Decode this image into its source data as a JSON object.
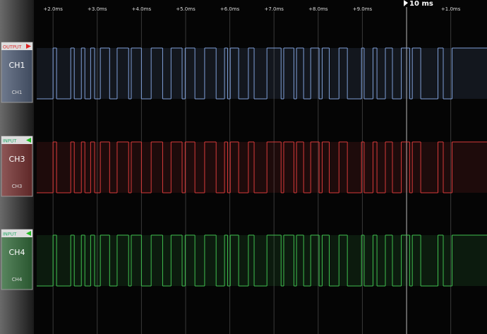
{
  "timeline": {
    "xlim": [
      1.63,
      11.82
    ],
    "ticks": [
      {
        "value": 2,
        "label": "+2.0ms"
      },
      {
        "value": 3,
        "label": "+3.0ms"
      },
      {
        "value": 4,
        "label": "+4.0ms"
      },
      {
        "value": 5,
        "label": "+5.0ms"
      },
      {
        "value": 6,
        "label": "+6.0ms"
      },
      {
        "value": 7,
        "label": "+7.0ms"
      },
      {
        "value": 8,
        "label": "+8.0ms"
      },
      {
        "value": 9,
        "label": "+9.0ms"
      },
      {
        "value": 11,
        "label": "+1.0ms"
      }
    ],
    "marker": {
      "value": 10,
      "label": "10 ms"
    }
  },
  "channels": [
    {
      "direction": "OUTPUT",
      "name": "CH1",
      "label": "CH1",
      "color": "#7f9fd8",
      "edges": [
        2.0,
        2.08,
        2.4,
        2.48,
        2.64,
        2.72,
        2.85,
        2.94,
        3.07,
        3.28,
        3.45,
        3.71,
        3.77,
        4.0,
        4.22,
        4.48,
        4.67,
        4.92,
        4.99,
        5.21,
        5.43,
        5.69,
        5.88,
        5.95,
        6.01,
        6.2,
        6.42,
        6.55,
        6.84,
        7.16,
        7.22,
        7.45,
        7.51,
        7.67,
        7.83,
        8.02,
        8.09,
        8.25,
        8.47,
        8.66,
        8.98,
        9.04,
        9.24,
        9.33,
        9.52,
        9.68,
        9.88,
        10.07,
        10.13,
        10.32,
        10.71,
        10.83,
        11.03
      ]
    },
    {
      "direction": "INPUT",
      "name": "CH3",
      "label": "CH3",
      "color": "#d83a3a",
      "edges": [
        2.0,
        2.08,
        2.4,
        2.48,
        2.64,
        2.72,
        2.85,
        2.94,
        3.07,
        3.28,
        3.45,
        3.71,
        3.77,
        4.0,
        4.22,
        4.48,
        4.67,
        4.92,
        4.99,
        5.21,
        5.43,
        5.69,
        5.88,
        5.95,
        6.01,
        6.2,
        6.42,
        6.55,
        6.84,
        7.16,
        7.22,
        7.45,
        7.51,
        7.67,
        7.83,
        8.02,
        8.09,
        8.25,
        8.47,
        8.66,
        8.98,
        9.04,
        9.24,
        9.33,
        9.52,
        9.68,
        9.88,
        10.07,
        10.13,
        10.32,
        10.71,
        10.83,
        11.03
      ]
    },
    {
      "direction": "INPUT",
      "name": "CH4",
      "label": "CH4",
      "color": "#3fbf4f",
      "edges": [
        2.0,
        2.08,
        2.4,
        2.48,
        2.64,
        2.72,
        2.85,
        2.94,
        3.07,
        3.28,
        3.45,
        3.71,
        3.77,
        4.0,
        4.22,
        4.48,
        4.67,
        4.92,
        4.99,
        5.21,
        5.43,
        5.69,
        5.88,
        5.95,
        6.01,
        6.2,
        6.42,
        6.55,
        6.84,
        7.16,
        7.22,
        7.45,
        7.51,
        7.67,
        7.83,
        8.02,
        8.09,
        8.25,
        8.47,
        8.66,
        8.98,
        9.04,
        9.24,
        9.33,
        9.52,
        9.68,
        9.88,
        10.07,
        10.13,
        10.32,
        10.71,
        10.83,
        11.03
      ]
    }
  ]
}
